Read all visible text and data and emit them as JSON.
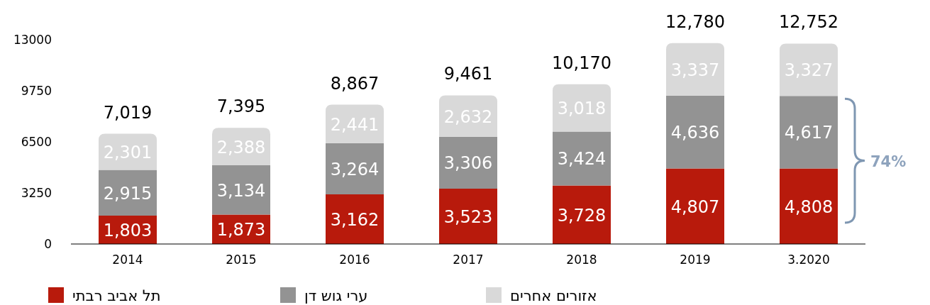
{
  "chart_data": {
    "type": "bar",
    "stacked": true,
    "categories": [
      "2014",
      "2015",
      "2016",
      "2017",
      "2018",
      "2019",
      "3.2020"
    ],
    "series": [
      {
        "name": "תל אביב רבתי",
        "color": "#b81a0c",
        "values": [
          1803,
          1873,
          3162,
          3523,
          3728,
          4807,
          4808
        ],
        "value_labels": [
          "1,803",
          "1,873",
          "3,162",
          "3,523",
          "3,728",
          "4,807",
          "4,808"
        ]
      },
      {
        "name": "ערי גוש דן",
        "color": "#939393",
        "values": [
          2915,
          3134,
          3264,
          3306,
          3424,
          4636,
          4617
        ],
        "value_labels": [
          "2,915",
          "3,134",
          "3,264",
          "3,306",
          "3,424",
          "4,636",
          "4,617"
        ]
      },
      {
        "name": "אזורים אחרים",
        "color": "#d9d9d9",
        "values": [
          2301,
          2388,
          2441,
          2632,
          3018,
          3337,
          3327
        ],
        "value_labels": [
          "2,301",
          "2,388",
          "2,441",
          "2,632",
          "3,018",
          "3,337",
          "3,327"
        ]
      }
    ],
    "totals": [
      "7,019",
      "7,395",
      "8,867",
      "9,461",
      "10,170",
      "12,780",
      "12,752"
    ],
    "ylim": [
      0,
      13000
    ],
    "yticks": [
      0,
      3250,
      6500,
      9750,
      13000
    ],
    "legend": "bottom",
    "annotations": [
      "74%"
    ]
  }
}
